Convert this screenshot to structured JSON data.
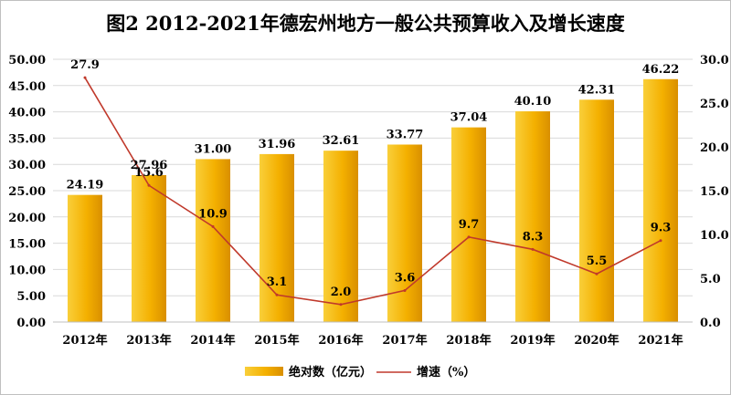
{
  "chart_data": {
    "type": "bar",
    "title": "图2   2012-2021年德宏州地方一般公共预算收入及增长速度",
    "categories": [
      "2012年",
      "2013年",
      "2014年",
      "2015年",
      "2016年",
      "2017年",
      "2018年",
      "2019年",
      "2020年",
      "2021年"
    ],
    "series": [
      {
        "name": "绝对数（亿元）",
        "type": "bar",
        "axis": "left",
        "values": [
          24.19,
          27.96,
          31.0,
          31.96,
          32.61,
          33.77,
          37.04,
          40.1,
          42.31,
          46.22
        ],
        "labels": [
          "24.19",
          "27.96",
          "31.00",
          "31.96",
          "32.61",
          "33.77",
          "37.04",
          "40.10",
          "42.31",
          "46.22"
        ],
        "color": "#f5b400"
      },
      {
        "name": "增速（%）",
        "type": "line",
        "axis": "right",
        "values": [
          27.9,
          15.6,
          10.9,
          3.1,
          2.0,
          3.6,
          9.7,
          8.3,
          5.5,
          9.3
        ],
        "labels": [
          "27.9",
          "15.6",
          "10.9",
          "3.1",
          "2.0",
          "3.6",
          "9.7",
          "8.3",
          "5.5",
          "9.3"
        ],
        "color": "#c0392b"
      }
    ],
    "y_left": {
      "range": [
        0,
        50
      ],
      "step": 5,
      "ticks": [
        "0.00",
        "5.00",
        "10.00",
        "15.00",
        "20.00",
        "25.00",
        "30.00",
        "35.00",
        "40.00",
        "45.00",
        "50.00"
      ]
    },
    "y_right": {
      "range": [
        0,
        30
      ],
      "step": 5,
      "ticks": [
        "0.0",
        "5.0",
        "10.0",
        "15.0",
        "20.0",
        "25.0",
        "30.0"
      ]
    },
    "grid": true,
    "legend": "bottom"
  }
}
